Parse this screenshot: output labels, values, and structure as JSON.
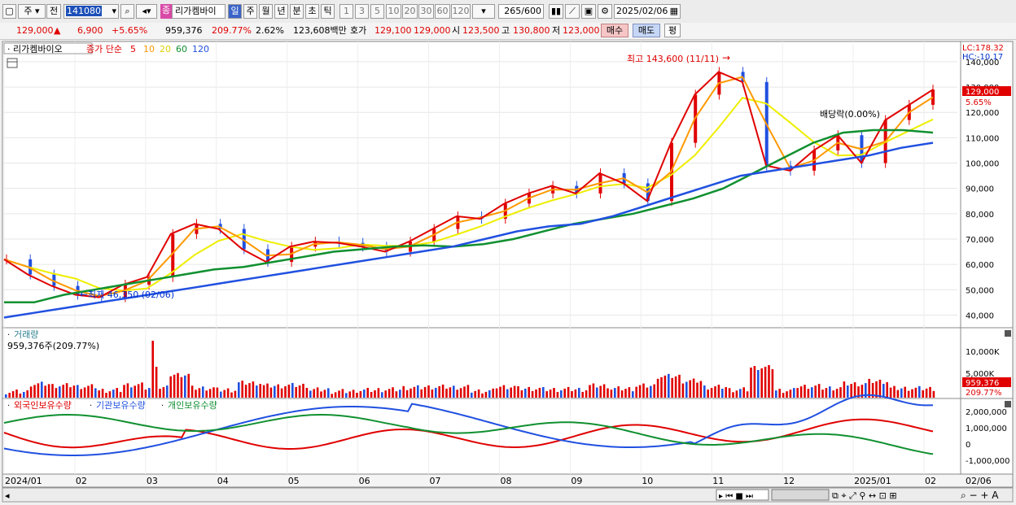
{
  "toolbar": {
    "type1": "주",
    "type2": "전",
    "code": "141080",
    "name": "리가켐바이",
    "periods": [
      "일",
      "주",
      "월",
      "년",
      "분",
      "초",
      "틱"
    ],
    "active_period": "일",
    "mins": [
      "1",
      "3",
      "5",
      "10",
      "20",
      "30",
      "60",
      "120"
    ],
    "count": "265",
    "count_total": "/600",
    "date": "2025/02/06"
  },
  "quote": {
    "price": "129,000",
    "change": "6,900",
    "pct": "+5.65%",
    "volume": "959,376",
    "vol_ratio": "209.77%",
    "turnover": "2.62%",
    "amount": "123,608백만",
    "bid_label": "호가",
    "bid": "129,100",
    "ask": "129,000",
    "open_label": "시",
    "open": "123,500",
    "high_label": "고",
    "high": "130,800",
    "low_label": "저",
    "low": "123,000",
    "buy": "매수",
    "sell": "매도",
    "avg": "평"
  },
  "panels": {
    "price": {
      "title": "리가켐바이오",
      "legend_close": "종가 단순",
      "ma_periods": [
        "5",
        "10",
        "20",
        "60",
        "120"
      ],
      "ma_colors": [
        "#e00000",
        "#ff9900",
        "#eeee00",
        "#109030",
        "#2050e0"
      ],
      "lc": "LC:178.32",
      "hc": "HC:-10.17",
      "high_note": "최고 143,600 (11/11)",
      "low_note": "최저 46,350 (02/06)",
      "dividend_note": "배당락(0.00%)",
      "current_price": "129,000",
      "current_pct": "5.65%",
      "yticks": [
        "140,000",
        "130,000",
        "120,000",
        "110,000",
        "100,000",
        "90,000",
        "80,000",
        "70,000",
        "60,000",
        "50,000",
        "40,000"
      ]
    },
    "volume": {
      "title": "거래량",
      "value": "959,376주(209.77%)",
      "yticks": [
        "10,000K",
        "5,000K"
      ],
      "current": "959,376",
      "current_pct": "209.77%"
    },
    "holdings": {
      "legend": [
        "외국인보유수량",
        "기관보유수량",
        "개인보유수량"
      ],
      "colors": [
        "#e00000",
        "#2050e0",
        "#109030"
      ],
      "yticks": [
        "2,000,000",
        "1,000,000",
        "0",
        "-1,000,000"
      ]
    }
  },
  "xaxis": [
    "2024/01",
    "02",
    "03",
    "04",
    "05",
    "06",
    "07",
    "08",
    "09",
    "10",
    "11",
    "12",
    "2025/01",
    "02"
  ],
  "xaxis_right": "02/06",
  "chart_data": {
    "type": "candlestick",
    "series": [
      {
        "name": "close",
        "values": [
          62000,
          56000,
          51500,
          48000,
          47000,
          52000,
          55000,
          72000,
          76000,
          74000,
          66000,
          61000,
          67000,
          69000,
          68500,
          67000,
          65000,
          69000,
          74000,
          79000,
          78000,
          84000,
          88000,
          91000,
          88000,
          96000,
          92000,
          85000,
          108000,
          127000,
          136000,
          132000,
          99000,
          97000,
          105000,
          111000,
          100000,
          117000,
          123000,
          129000
        ]
      },
      {
        "name": "ma60",
        "values": [
          45000,
          45000,
          48000,
          50000,
          52000,
          54000,
          56000,
          58000,
          59000,
          61000,
          63000,
          65000,
          66000,
          67000,
          67500,
          67000,
          68000,
          70000,
          73000,
          76000,
          78000,
          80000,
          83000,
          86000,
          90000,
          96000,
          102000,
          108000,
          112000,
          113000,
          113000,
          112000
        ]
      },
      {
        "name": "ma120",
        "values": [
          39000,
          41000,
          43000,
          45000,
          47000,
          49000,
          51000,
          53000,
          55000,
          57000,
          59000,
          61000,
          63000,
          65000,
          67000,
          70000,
          73000,
          75000,
          76000,
          79000,
          83000,
          87000,
          91000,
          95000,
          97000,
          99000,
          101000,
          103000,
          106000,
          108000
        ]
      }
    ],
    "yrange": [
      35000,
      148000
    ]
  }
}
